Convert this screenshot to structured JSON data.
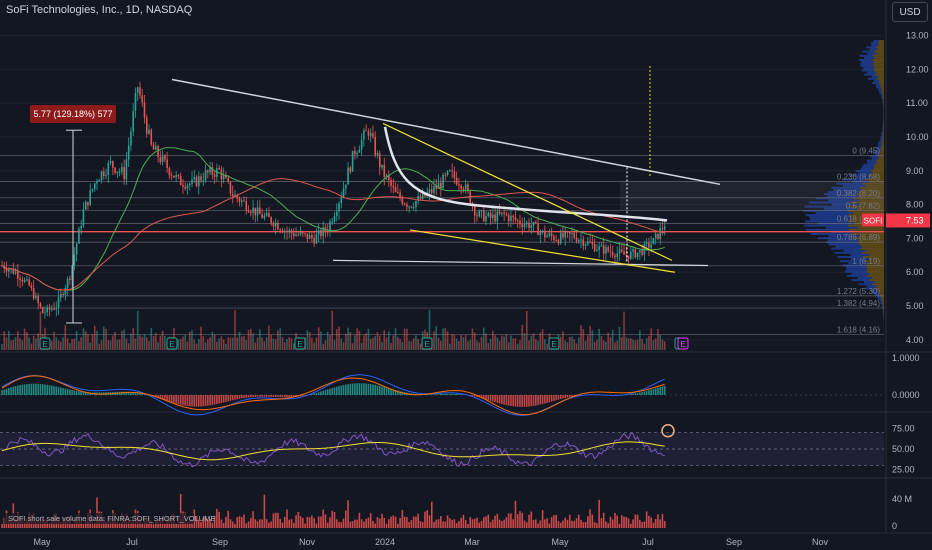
{
  "header": {
    "symbol_title": "SoFi Technologies, Inc., 1D, NASDAQ",
    "currency": "USD"
  },
  "colors": {
    "background": "#131722",
    "up": "#26a69a",
    "down": "#ef5350",
    "trendline_white": "#d1d4dc",
    "wedge_yellow": "#f2e32e",
    "ma_green": "#4caf50",
    "ma_red": "#e0574f",
    "fib_line": "#787b86",
    "price_tag": "#f23645",
    "measure_box": "#8e1b1b"
  },
  "chart_data": {
    "type": "candlestick",
    "title": "SoFi Technologies, Inc., 1D, NASDAQ",
    "price_axis": {
      "ticks": [
        "13.00",
        "12.00",
        "11.00",
        "10.00",
        "9.00",
        "8.00",
        "7.00",
        "6.00",
        "5.00",
        "4.00"
      ],
      "ylim": [
        3.7,
        13.4
      ],
      "last_price_symbol": "SOFI",
      "last_price": "7.53"
    },
    "time_axis": {
      "ticks": [
        "May",
        "Jul",
        "Sep",
        "Nov",
        "2024",
        "Mar",
        "May",
        "Jul",
        "Sep",
        "Nov"
      ]
    },
    "approx_closes_weekly": [
      6.2,
      6.0,
      5.6,
      4.8,
      5.0,
      5.9,
      7.8,
      8.8,
      9.2,
      8.9,
      11.5,
      9.7,
      9.2,
      8.7,
      8.6,
      8.9,
      9.0,
      8.3,
      8.0,
      7.7,
      7.5,
      7.2,
      7.1,
      7.0,
      7.3,
      8.3,
      9.6,
      10.2,
      9.0,
      8.3,
      8.0,
      8.2,
      8.5,
      8.9,
      8.6,
      7.7,
      7.6,
      7.7,
      7.5,
      7.4,
      7.1,
      7.0,
      7.1,
      6.9,
      6.7,
      6.6,
      6.5,
      6.6,
      6.9,
      7.53
    ],
    "measure_label": "5.77 (129.18%) 577",
    "fib_levels": [
      {
        "label": "0 (9.45)",
        "value": 9.45
      },
      {
        "label": "0.236 (8.68)",
        "value": 8.68
      },
      {
        "label": "0.382 (8.20)",
        "value": 8.2
      },
      {
        "label": "0.5 (7.82)",
        "value": 7.82
      },
      {
        "label": "0.618 (7.44)",
        "value": 7.44
      },
      {
        "label": "0.786 (6.89)",
        "value": 6.89
      },
      {
        "label": "1 (6.19)",
        "value": 6.19
      },
      {
        "label": "1.272 (5.30)",
        "value": 5.3
      },
      {
        "label": "1.382 (4.94)",
        "value": 4.94
      },
      {
        "label": "1.618 (4.16)",
        "value": 4.16
      }
    ],
    "event_markers": [
      "E",
      "E",
      "E",
      "E",
      "E",
      "E",
      "E"
    ],
    "macd_axis": {
      "ticks": [
        "1.0000",
        "0.0000"
      ]
    },
    "rsi_axis": {
      "ticks": [
        "75.00",
        "50.00",
        "25.00"
      ]
    },
    "short_volume_axis": {
      "ticks": [
        "40 M",
        "0"
      ]
    },
    "short_volume_label": "SOFI short sale volume data: FINRA:SOFI_SHORT_VOLUME"
  }
}
